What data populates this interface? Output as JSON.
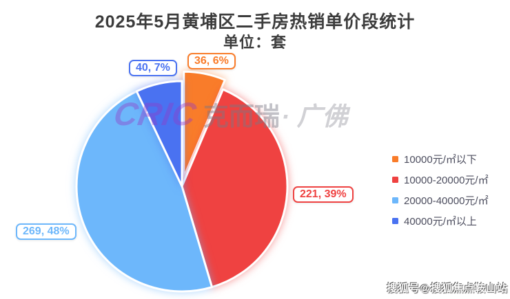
{
  "title": {
    "line1": "2025年5月黄埔区二手房热销单价段统计",
    "line2": "单位：套"
  },
  "chart_data": {
    "type": "pie",
    "title": "2025年5月黄埔区二手房热销单价段统计",
    "subtitle": "单位：套",
    "unit_label": "套",
    "legend_position": "right",
    "start_angle": "top, clockwise",
    "slices": [
      {
        "label": "10000元/㎡以下",
        "value": 36,
        "percent": "6%",
        "data_label": "36, 6%",
        "color": "#f97c2a",
        "exploded": true
      },
      {
        "label": "10000-20000元/㎡",
        "value": 221,
        "percent": "39%",
        "data_label": "221, 39%",
        "color": "#ef4241",
        "exploded": false
      },
      {
        "label": "20000-40000元/㎡",
        "value": 269,
        "percent": "48%",
        "data_label": "269, 48%",
        "color": "#6db7fb",
        "exploded": false
      },
      {
        "label": "40000元/㎡以上",
        "value": 40,
        "percent": "7%",
        "data_label": "40, 7%",
        "color": "#4a72f1",
        "exploded": false
      }
    ]
  },
  "watermark": {
    "logo": "CRIC",
    "brand": "克而瑞",
    "region": "· 广佛",
    "bottom_right": "搜狐号@搜狐焦点鞍山站"
  }
}
